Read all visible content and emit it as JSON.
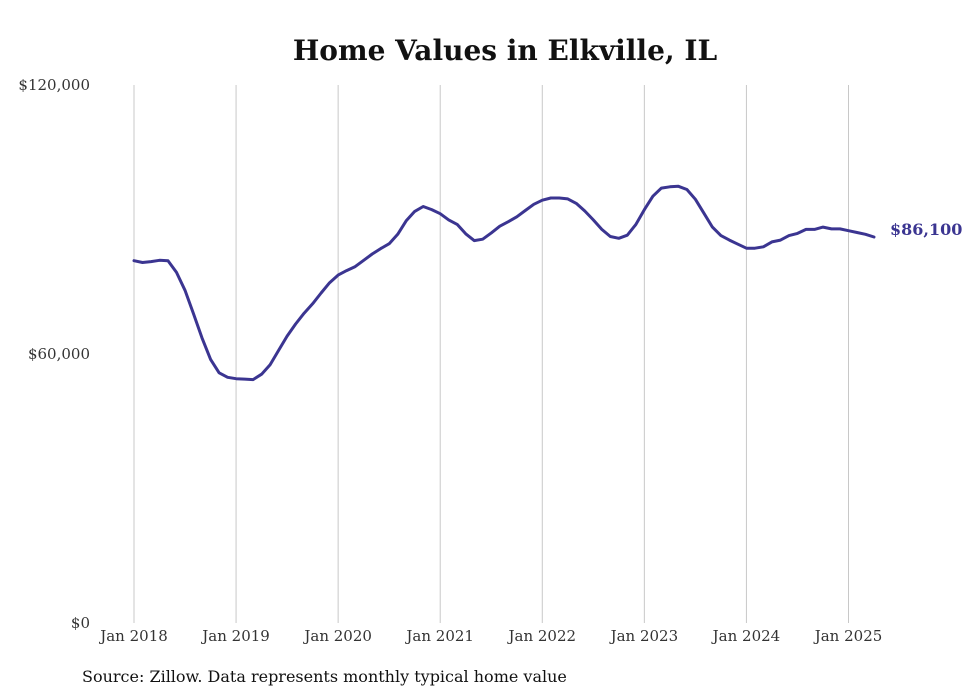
{
  "chart_data": {
    "type": "line",
    "title": "Home Values in Elkville, IL",
    "xlabel": "",
    "ylabel": "",
    "ylim": [
      0,
      120000
    ],
    "xlim": [
      "2018-01",
      "2025-05"
    ],
    "yticks": [
      {
        "value": 0,
        "label": "$0"
      },
      {
        "value": 60000,
        "label": "$60,000"
      },
      {
        "value": 120000,
        "label": "$120,000"
      }
    ],
    "xticks": [
      {
        "value": "2018-01",
        "label": "Jan 2018"
      },
      {
        "value": "2019-01",
        "label": "Jan 2019"
      },
      {
        "value": "2020-01",
        "label": "Jan 2020"
      },
      {
        "value": "2021-01",
        "label": "Jan 2021"
      },
      {
        "value": "2022-01",
        "label": "Jan 2022"
      },
      {
        "value": "2023-01",
        "label": "Jan 2023"
      },
      {
        "value": "2024-01",
        "label": "Jan 2024"
      },
      {
        "value": "2025-01",
        "label": "Jan 2025"
      }
    ],
    "grid": {
      "vertical": true,
      "horizontal": false
    },
    "line_color": "#3b3591",
    "end_label": "$86,100",
    "series": [
      {
        "x": [
          "2018-01",
          "2018-02",
          "2018-03",
          "2018-04",
          "2018-05",
          "2018-06",
          "2018-07",
          "2018-08",
          "2018-09",
          "2018-10",
          "2018-11",
          "2018-12",
          "2019-01",
          "2019-02",
          "2019-03",
          "2019-04",
          "2019-05",
          "2019-06",
          "2019-07",
          "2019-08",
          "2019-09",
          "2019-10",
          "2019-11",
          "2019-12",
          "2020-01",
          "2020-02",
          "2020-03",
          "2020-04",
          "2020-05",
          "2020-06",
          "2020-07",
          "2020-08",
          "2020-09",
          "2020-10",
          "2020-11",
          "2020-12",
          "2021-01",
          "2021-02",
          "2021-03",
          "2021-04",
          "2021-05",
          "2021-06",
          "2021-07",
          "2021-08",
          "2021-09",
          "2021-10",
          "2021-11",
          "2021-12",
          "2022-01",
          "2022-02",
          "2022-03",
          "2022-04",
          "2022-05",
          "2022-06",
          "2022-07",
          "2022-08",
          "2022-09",
          "2022-10",
          "2022-11",
          "2022-12",
          "2023-01",
          "2023-02",
          "2023-03",
          "2023-04",
          "2023-05",
          "2023-06",
          "2023-07",
          "2023-08",
          "2023-09",
          "2023-10",
          "2023-11",
          "2023-12",
          "2024-01",
          "2024-02",
          "2024-03",
          "2024-04",
          "2024-05",
          "2024-06",
          "2024-07",
          "2024-08",
          "2024-09",
          "2024-10",
          "2024-11",
          "2024-12",
          "2025-01",
          "2025-02",
          "2025-03",
          "2025-04"
        ],
        "values": [
          80800,
          80400,
          80600,
          80900,
          80800,
          78200,
          74200,
          69000,
          63600,
          58800,
          55800,
          54800,
          54500,
          54400,
          54300,
          55500,
          57600,
          60800,
          64000,
          66700,
          69100,
          71200,
          73600,
          75900,
          77600,
          78600,
          79500,
          80900,
          82300,
          83500,
          84600,
          86700,
          89700,
          91800,
          92900,
          92200,
          91300,
          89900,
          88900,
          86800,
          85300,
          85600,
          87000,
          88500,
          89500,
          90600,
          92000,
          93400,
          94300,
          94800,
          94800,
          94600,
          93600,
          91900,
          89900,
          87800,
          86200,
          85800,
          86500,
          88900,
          92200,
          95200,
          97000,
          97300,
          97400,
          96700,
          94500,
          91400,
          88300,
          86400,
          85400,
          84500,
          83600,
          83600,
          83900,
          85000,
          85400,
          86400,
          86900,
          87800,
          87800,
          88300,
          87900,
          87900,
          87500,
          87100,
          86700,
          86100
        ]
      }
    ]
  },
  "source_text": "Source: Zillow. Data represents monthly typical home value"
}
